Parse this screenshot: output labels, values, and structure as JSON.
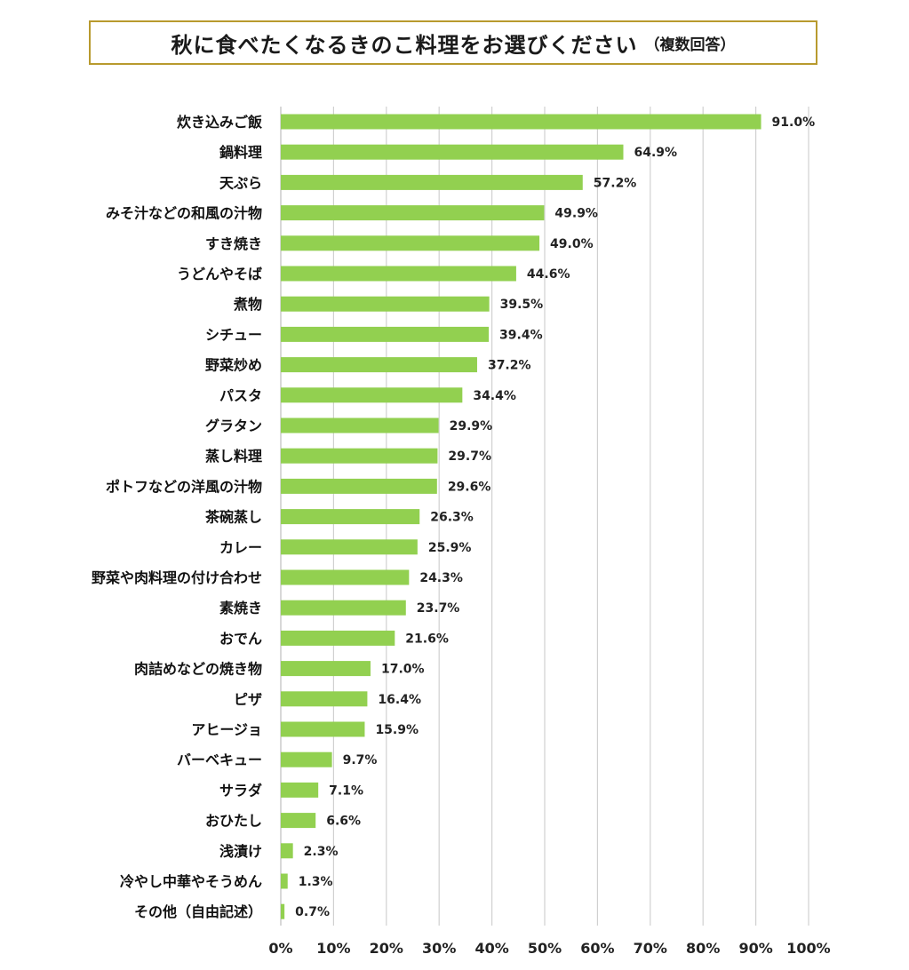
{
  "chart_data": {
    "type": "bar",
    "orientation": "horizontal",
    "title": "秋に食べたくなるきのこ料理をお選びください",
    "subtitle": "（複数回答）",
    "categories": [
      "炊き込みご飯",
      "鍋料理",
      "天ぷら",
      "みそ汁などの和風の汁物",
      "すき焼き",
      "うどんやそば",
      "煮物",
      "シチュー",
      "野菜炒め",
      "パスタ",
      "グラタン",
      "蒸し料理",
      "ポトフなどの洋風の汁物",
      "茶碗蒸し",
      "カレー",
      "野菜や肉料理の付け合わせ",
      "素焼き",
      "おでん",
      "肉詰めなどの焼き物",
      "ピザ",
      "アヒージョ",
      "バーベキュー",
      "サラダ",
      "おひたし",
      "浅漬け",
      "冷やし中華やそうめん",
      "その他（自由記述）"
    ],
    "values": [
      91.0,
      64.9,
      57.2,
      49.9,
      49.0,
      44.6,
      39.5,
      39.4,
      37.2,
      34.4,
      29.9,
      29.7,
      29.6,
      26.3,
      25.9,
      24.3,
      23.7,
      21.6,
      17.0,
      16.4,
      15.9,
      9.7,
      7.1,
      6.6,
      2.3,
      1.3,
      0.7
    ],
    "value_labels": [
      "91.0%",
      "64.9%",
      "57.2%",
      "49.9%",
      "49.0%",
      "44.6%",
      "39.5%",
      "39.4%",
      "37.2%",
      "34.4%",
      "29.9%",
      "29.7%",
      "29.6%",
      "26.3%",
      "25.9%",
      "24.3%",
      "23.7%",
      "21.6%",
      "17.0%",
      "16.4%",
      "15.9%",
      "9.7%",
      "7.1%",
      "6.6%",
      "2.3%",
      "1.3%",
      "0.7%"
    ],
    "xlim": [
      0,
      100
    ],
    "ticks": [
      "0%",
      "10%",
      "20%",
      "30%",
      "40%",
      "50%",
      "60%",
      "70%",
      "80%",
      "90%",
      "100%"
    ],
    "grid": true,
    "bar_color": "#92d050"
  }
}
